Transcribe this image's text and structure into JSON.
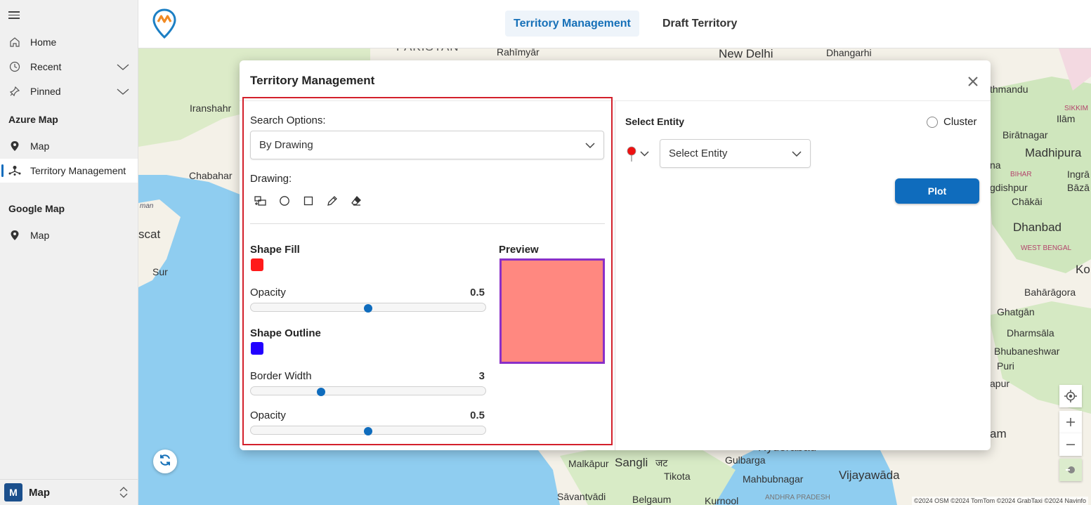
{
  "sidebar": {
    "items": [
      {
        "label": "Home",
        "icon": "home-icon"
      },
      {
        "label": "Recent",
        "icon": "clock-icon"
      },
      {
        "label": "Pinned",
        "icon": "pin-icon"
      }
    ],
    "groups": [
      {
        "title": "Azure Map",
        "items": [
          {
            "label": "Map",
            "icon": "map-pin-icon"
          },
          {
            "label": "Territory Management",
            "icon": "territory-icon",
            "active": true
          }
        ]
      },
      {
        "title": "Google Map",
        "items": [
          {
            "label": "Map",
            "icon": "map-pin-icon"
          }
        ]
      }
    ],
    "footer": {
      "badge": "M",
      "label": "Map"
    }
  },
  "header": {
    "tabs": [
      {
        "label": "Territory Management",
        "active": true
      },
      {
        "label": "Draft Territory",
        "active": false
      }
    ]
  },
  "map": {
    "labels": [
      {
        "text": "PAKISTAN"
      },
      {
        "text": "Rahīmyār"
      },
      {
        "text": "New Delhi"
      },
      {
        "text": "Dhangarhi"
      },
      {
        "text": "Iranshahr"
      },
      {
        "text": "Chabahar"
      },
      {
        "text": "man"
      },
      {
        "text": "scat"
      },
      {
        "text": "Sur"
      },
      {
        "text": "thmandu"
      },
      {
        "text": "SIKKIM"
      },
      {
        "text": "Ilām"
      },
      {
        "text": "Birātnagar"
      },
      {
        "text": "Madhipura"
      },
      {
        "text": "na"
      },
      {
        "text": "BIHAR"
      },
      {
        "text": "Ingrā"
      },
      {
        "text": "gdishpur"
      },
      {
        "text": "Bāzā"
      },
      {
        "text": "Chākāi"
      },
      {
        "text": "Dhanbad"
      },
      {
        "text": "WEST BENGAL"
      },
      {
        "text": "Ko"
      },
      {
        "text": "Bahārāgora"
      },
      {
        "text": "Ghatgān"
      },
      {
        "text": "Dharmsāla"
      },
      {
        "text": "Bhubaneshwar"
      },
      {
        "text": "Puri"
      },
      {
        "text": "apur"
      },
      {
        "text": "am"
      },
      {
        "text": "Malkāpur"
      },
      {
        "text": "Sangli"
      },
      {
        "text": "जट"
      },
      {
        "text": "Gulbarga"
      },
      {
        "text": "Tikota"
      },
      {
        "text": "Mahbubnagar"
      },
      {
        "text": "Vijayawāda"
      },
      {
        "text": "Sāvantvādi"
      },
      {
        "text": "Belgaum"
      },
      {
        "text": "Kurnool"
      },
      {
        "text": "ANDHRA PRADESH"
      },
      {
        "text": "Hyderabad"
      }
    ],
    "attribution": "©2024 OSM ©2024 TomTom ©2024 GrabTaxi ©2024 Navinfo"
  },
  "dialog": {
    "title": "Territory Management",
    "search_options_label": "Search Options:",
    "search_option_value": "By Drawing",
    "drawing_label": "Drawing:",
    "drawing_tools": [
      "rectangle-select-icon",
      "circle-icon",
      "square-icon",
      "pencil-icon",
      "eraser-icon"
    ],
    "shape_fill_label": "Shape Fill",
    "shape_fill_color": "#ff1a1a",
    "fill_opacity_label": "Opacity",
    "fill_opacity_value": "0.5",
    "fill_opacity": 0.5,
    "shape_outline_label": "Shape Outline",
    "shape_outline_color": "#2200ff",
    "border_width_label": "Border Width",
    "border_width_value": "3",
    "border_width_fraction": 0.3,
    "outline_opacity_label": "Opacity",
    "outline_opacity_value": "0.5",
    "outline_opacity": 0.5,
    "preview_label": "Preview",
    "select_entity_label": "Select Entity",
    "cluster_label": "Cluster",
    "entity_placeholder": "Select Entity",
    "plot_label": "Plot"
  }
}
